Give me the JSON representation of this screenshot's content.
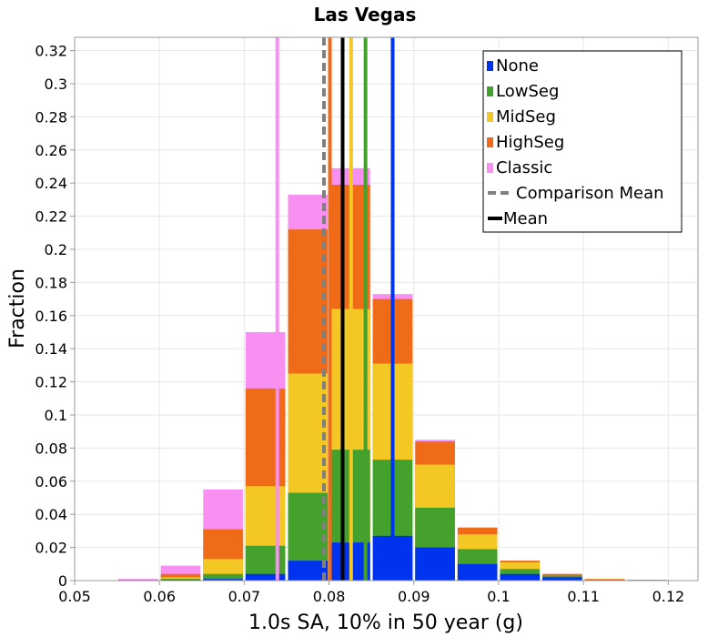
{
  "chart_data": {
    "type": "bar",
    "stacked": true,
    "title": "Las Vegas",
    "xlabel": "1.0s SA, 10% in 50 year (g)",
    "ylabel": "Fraction",
    "xlim": [
      0.05,
      0.1235
    ],
    "ylim": [
      0,
      0.328
    ],
    "bin_width": 0.005,
    "grid": true,
    "legend_position": "top-right",
    "x_ticks": [
      0.05,
      0.06,
      0.07,
      0.08,
      0.09,
      0.1,
      0.11,
      0.12
    ],
    "x_tick_labels": [
      "0.05",
      "0.06",
      "0.07",
      "0.08",
      "0.09",
      "0.1",
      "0.11",
      "0.12"
    ],
    "y_ticks": [
      0,
      0.02,
      0.04,
      0.06,
      0.08,
      0.1,
      0.12,
      0.14,
      0.16,
      0.18,
      0.2,
      0.22,
      0.24,
      0.26,
      0.28,
      0.3,
      0.32
    ],
    "y_tick_labels": [
      "0",
      "0.02",
      "0.04",
      "0.06",
      "0.08",
      "0.1",
      "0.12",
      "0.14",
      "0.16",
      "0.18",
      "0.2",
      "0.22",
      "0.24",
      "0.26",
      "0.28",
      "0.3",
      "0.32"
    ],
    "bin_centers": [
      0.0575,
      0.0625,
      0.0675,
      0.0725,
      0.0775,
      0.0825,
      0.0875,
      0.0925,
      0.0975,
      0.1025,
      0.1075,
      0.1125,
      0.1175
    ],
    "series": [
      {
        "name": "None",
        "color": "#0033ee",
        "cumulative": [
          0,
          0.0005,
          0.001,
          0.004,
          0.012,
          0.023,
          0.027,
          0.02,
          0.01,
          0.004,
          0.002,
          0.0003,
          0
        ]
      },
      {
        "name": "LowSeg",
        "color": "#44a12c",
        "cumulative": [
          0,
          0.001,
          0.004,
          0.021,
          0.053,
          0.079,
          0.073,
          0.044,
          0.019,
          0.007,
          0.003,
          0.0005,
          0.0002
        ]
      },
      {
        "name": "MidSeg",
        "color": "#f3c824",
        "cumulative": [
          0,
          0.002,
          0.013,
          0.057,
          0.125,
          0.164,
          0.131,
          0.07,
          0.028,
          0.011,
          0.003,
          0.0007,
          0.0003
        ]
      },
      {
        "name": "HighSeg",
        "color": "#f06b18",
        "cumulative": [
          0.0005,
          0.004,
          0.031,
          0.116,
          0.212,
          0.239,
          0.17,
          0.084,
          0.032,
          0.012,
          0.004,
          0.001,
          0.0005
        ]
      },
      {
        "name": "Classic",
        "color": "#f890f2",
        "cumulative": [
          0.001,
          0.009,
          0.055,
          0.15,
          0.233,
          0.249,
          0.173,
          0.085,
          0.032,
          0.012,
          0.004,
          0.001,
          0.0005
        ]
      }
    ],
    "mean_lines": [
      {
        "name": "None",
        "x": 0.0875,
        "color": "#0033ee",
        "style": "solid"
      },
      {
        "name": "LowSeg",
        "x": 0.0843,
        "color": "#44a12c",
        "style": "solid"
      },
      {
        "name": "MidSeg",
        "x": 0.0826,
        "color": "#f3c824",
        "style": "solid"
      },
      {
        "name": "HighSeg",
        "x": 0.0801,
        "color": "#f06b18",
        "style": "solid"
      },
      {
        "name": "Classic",
        "x": 0.0739,
        "color": "#f890f2",
        "style": "solid"
      },
      {
        "name": "Comparison Mean",
        "x": 0.0794,
        "color": "#808080",
        "style": "dashed"
      },
      {
        "name": "Mean",
        "x": 0.0816,
        "color": "#000000",
        "style": "solid"
      }
    ],
    "legend": [
      {
        "label": "None",
        "type": "box",
        "color": "#0033ee"
      },
      {
        "label": "LowSeg",
        "type": "box",
        "color": "#44a12c"
      },
      {
        "label": "MidSeg",
        "type": "box",
        "color": "#f3c824"
      },
      {
        "label": "HighSeg",
        "type": "box",
        "color": "#f06b18"
      },
      {
        "label": "Classic",
        "type": "box",
        "color": "#f890f2"
      },
      {
        "label": "Comparison Mean",
        "type": "dashed",
        "color": "#808080"
      },
      {
        "label": "Mean",
        "type": "line",
        "color": "#000000"
      }
    ]
  }
}
